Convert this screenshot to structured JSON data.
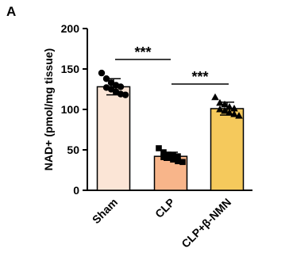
{
  "chart_data": {
    "type": "bar",
    "panel_label": "A",
    "ylabel": "NAD+ (pmol/mg tissue)",
    "categories": [
      "Sham",
      "CLP",
      "CLP+β-NMN"
    ],
    "values": [
      128,
      42,
      101
    ],
    "errors": [
      10,
      5,
      8
    ],
    "colors": [
      "#fbe5d6",
      "#f8b58a",
      "#f5c95c"
    ],
    "markers": [
      "circle",
      "square",
      "triangle"
    ],
    "points": [
      [
        145,
        138,
        133,
        130,
        128,
        127,
        125,
        122,
        119,
        118
      ],
      [
        52,
        47,
        44,
        43,
        42,
        41,
        40,
        38,
        36,
        35
      ],
      [
        115,
        108,
        106,
        103,
        101,
        100,
        98,
        96,
        94,
        92
      ]
    ],
    "annotations": [
      "***",
      "***"
    ],
    "ylim": [
      0,
      200
    ],
    "yticks": [
      0,
      50,
      100,
      150,
      200
    ]
  }
}
